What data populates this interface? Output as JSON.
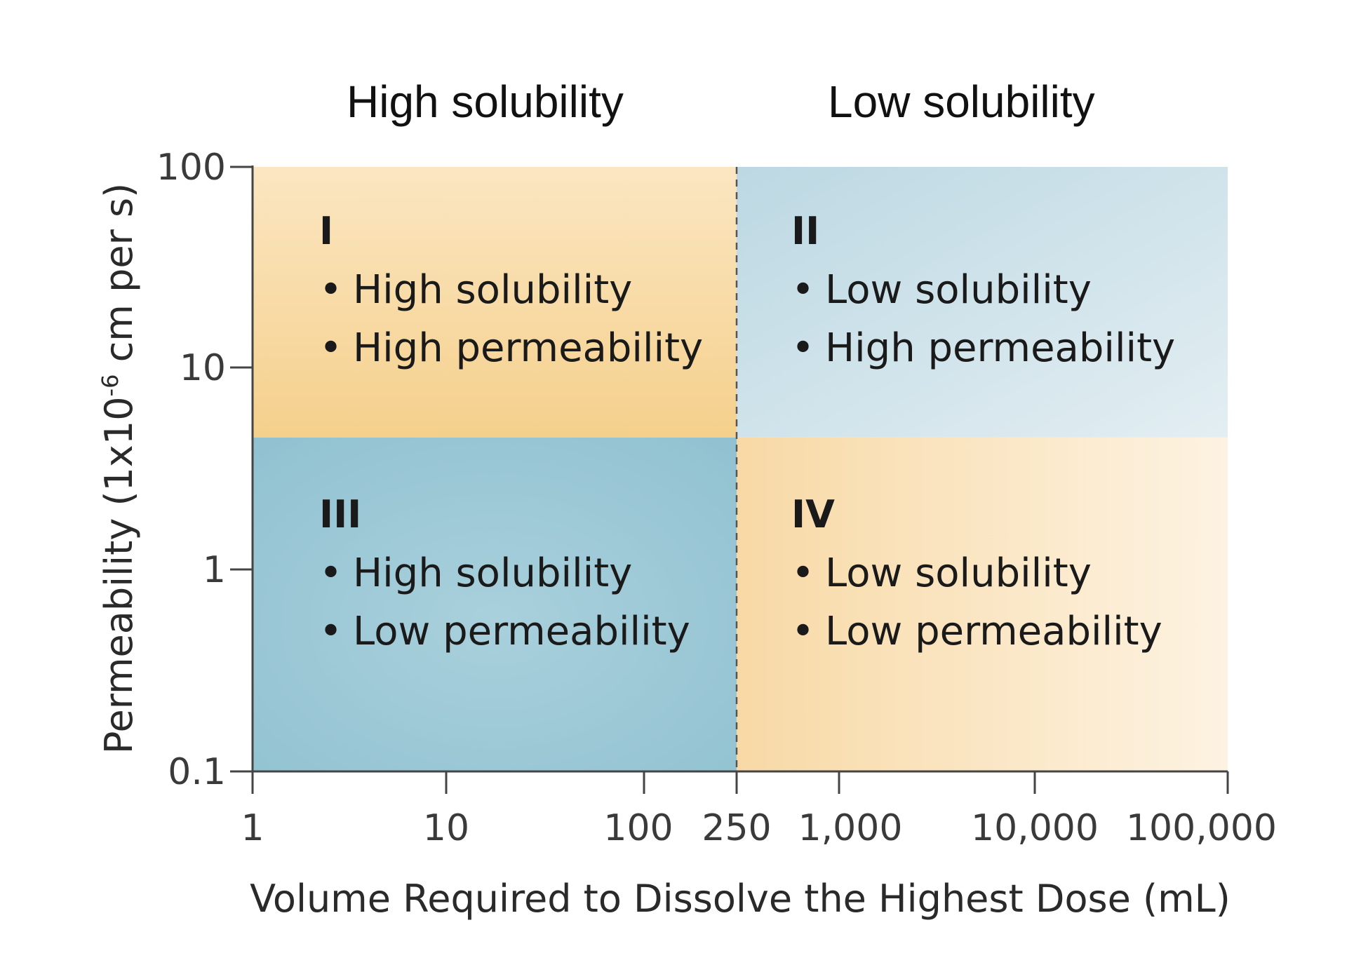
{
  "headers": {
    "high": "High solubility",
    "low": "Low solubility"
  },
  "colors": {
    "class1_fill": "#f7d79e",
    "class2_fill": "#c9dfe8",
    "class3_fill": "#9fcad8",
    "class4_fill": "#fbe3bf",
    "axis": "#444444",
    "divider": "#555555",
    "text": "#1a1a1a"
  },
  "quadrants": [
    {
      "id": "I",
      "roman": "I",
      "lines": [
        "High solubility",
        "High permeability"
      ]
    },
    {
      "id": "II",
      "roman": "II",
      "lines": [
        "Low solubility",
        "High permeability"
      ]
    },
    {
      "id": "III",
      "roman": "III",
      "lines": [
        "High solubility",
        "Low permeability"
      ]
    },
    {
      "id": "IV",
      "roman": "IV",
      "lines": [
        "Low solubility",
        "Low permeability"
      ]
    }
  ],
  "bullet": "•",
  "chart_data": {
    "type": "quadrant",
    "x_scale": "log",
    "y_scale": "log",
    "xlabel": "Volume Required to Dissolve the Highest Dose (mL)",
    "ylabel_prefix": "Permeability (1x10",
    "ylabel_exponent": "-6",
    "ylabel_suffix": " cm per s)",
    "xlim": [
      1,
      100000
    ],
    "ylim": [
      0.1,
      100
    ],
    "x_ticks": [
      {
        "value": 1,
        "label": "1"
      },
      {
        "value": 10,
        "label": "10"
      },
      {
        "value": 100,
        "label": "100"
      },
      {
        "value": 250,
        "label": "250"
      },
      {
        "value": 1000,
        "label": "1,000"
      },
      {
        "value": 10000,
        "label": "10,000"
      },
      {
        "value": 100000,
        "label": "100,000"
      }
    ],
    "y_ticks": [
      {
        "value": 0.1,
        "label": "0.1"
      },
      {
        "value": 1,
        "label": "1"
      },
      {
        "value": 10,
        "label": "10"
      },
      {
        "value": 100,
        "label": "100"
      }
    ],
    "solubility_boundary": 250,
    "permeability_boundary": 4.5
  }
}
